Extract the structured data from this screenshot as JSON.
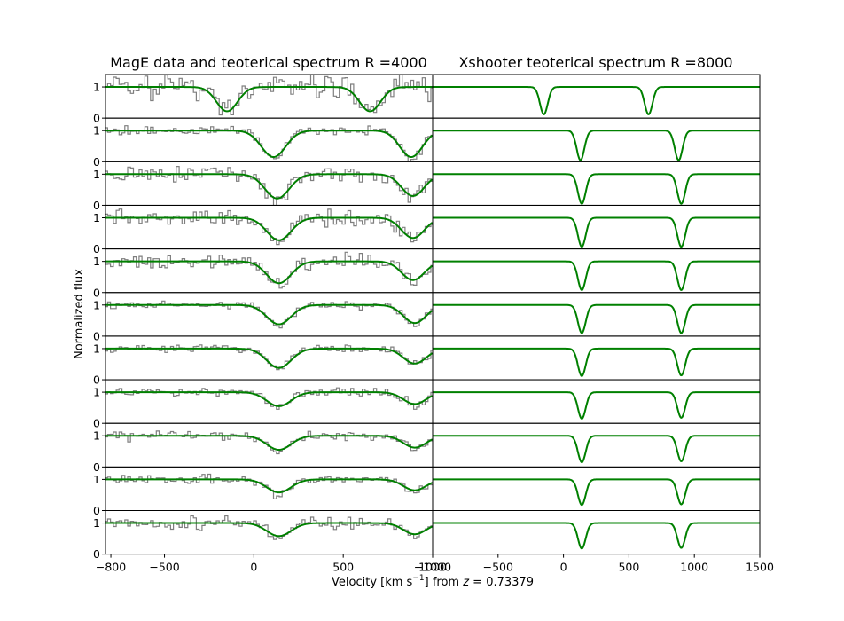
{
  "figure": {
    "ylabel": "Normalized flux",
    "xlabel_prefix": "Velocity [km s",
    "xlabel_sup": "−1",
    "xlabel_suffix": "] from ",
    "xlabel_z": "z",
    "xlabel_zval": " = 0.73379"
  },
  "chart_data": [
    {
      "type": "line",
      "title": "MagE data and teoterical spectrum R =4000",
      "xlim": [
        -830,
        1000
      ],
      "ylim": [
        0,
        1.4
      ],
      "xticks": [
        -800,
        -500,
        0,
        500,
        1000
      ],
      "xticklabels": [
        "−800",
        "−500",
        "0",
        "500",
        "1000"
      ],
      "yticks": [
        0,
        1
      ],
      "grid": false,
      "panels": [
        {
          "panel": 1,
          "components": [
            {
              "center": -150,
              "depth": 0.78,
              "fwhm": 140
            },
            {
              "center": 650,
              "depth": 0.78,
              "fwhm": 140
            }
          ],
          "data_noise": 0.22
        },
        {
          "panel": 2,
          "components": [
            {
              "center": 110,
              "depth": 0.85,
              "fwhm": 160
            },
            {
              "center": 880,
              "depth": 0.85,
              "fwhm": 150
            }
          ],
          "data_noise": 0.07
        },
        {
          "panel": 3,
          "components": [
            {
              "center": 130,
              "depth": 0.78,
              "fwhm": 160
            },
            {
              "center": 890,
              "depth": 0.7,
              "fwhm": 150
            }
          ],
          "data_noise": 0.12
        },
        {
          "panel": 4,
          "components": [
            {
              "center": 140,
              "depth": 0.72,
              "fwhm": 160
            },
            {
              "center": 890,
              "depth": 0.65,
              "fwhm": 150
            }
          ],
          "data_noise": 0.13
        },
        {
          "panel": 5,
          "components": [
            {
              "center": 140,
              "depth": 0.7,
              "fwhm": 160
            },
            {
              "center": 890,
              "depth": 0.6,
              "fwhm": 150
            }
          ],
          "data_noise": 0.12
        },
        {
          "panel": 6,
          "components": [
            {
              "center": 140,
              "depth": 0.62,
              "fwhm": 160
            },
            {
              "center": 900,
              "depth": 0.58,
              "fwhm": 150
            }
          ],
          "data_noise": 0.06
        },
        {
          "panel": 7,
          "components": [
            {
              "center": 140,
              "depth": 0.62,
              "fwhm": 160
            },
            {
              "center": 900,
              "depth": 0.48,
              "fwhm": 150
            }
          ],
          "data_noise": 0.06
        },
        {
          "panel": 8,
          "components": [
            {
              "center": 140,
              "depth": 0.45,
              "fwhm": 160
            },
            {
              "center": 900,
              "depth": 0.38,
              "fwhm": 150
            }
          ],
          "data_noise": 0.07
        },
        {
          "panel": 9,
          "components": [
            {
              "center": 140,
              "depth": 0.45,
              "fwhm": 160
            },
            {
              "center": 900,
              "depth": 0.38,
              "fwhm": 150
            }
          ],
          "data_noise": 0.07
        },
        {
          "panel": 10,
          "components": [
            {
              "center": 140,
              "depth": 0.42,
              "fwhm": 160
            },
            {
              "center": 900,
              "depth": 0.35,
              "fwhm": 150
            }
          ],
          "data_noise": 0.07
        },
        {
          "panel": 11,
          "components": [
            {
              "center": 140,
              "depth": 0.42,
              "fwhm": 160
            },
            {
              "center": 900,
              "depth": 0.36,
              "fwhm": 150
            }
          ],
          "data_noise": 0.09
        }
      ],
      "data_color": "#7f7f7f",
      "model_color": "#008000"
    },
    {
      "type": "line",
      "title": "Xshooter teoterical spectrum R =8000",
      "xlim": [
        -1000,
        1500
      ],
      "ylim": [
        0,
        1.4
      ],
      "xticks": [
        -1000,
        -500,
        0,
        500,
        1000,
        1500
      ],
      "xticklabels": [
        "−1000",
        "−500",
        "0",
        "500",
        "1000",
        "1500"
      ],
      "grid": false,
      "panels": [
        {
          "panel": 1,
          "components": [
            {
              "center": -150,
              "depth": 0.88,
              "fwhm": 70
            },
            {
              "center": 650,
              "depth": 0.88,
              "fwhm": 70
            }
          ]
        },
        {
          "panel": 2,
          "components": [
            {
              "center": 130,
              "depth": 0.95,
              "fwhm": 70
            },
            {
              "center": 880,
              "depth": 0.95,
              "fwhm": 70
            }
          ]
        },
        {
          "panel": 3,
          "components": [
            {
              "center": 140,
              "depth": 0.95,
              "fwhm": 70
            },
            {
              "center": 900,
              "depth": 0.95,
              "fwhm": 70
            }
          ]
        },
        {
          "panel": 4,
          "components": [
            {
              "center": 140,
              "depth": 0.93,
              "fwhm": 70
            },
            {
              "center": 900,
              "depth": 0.93,
              "fwhm": 70
            }
          ]
        },
        {
          "panel": 5,
          "components": [
            {
              "center": 140,
              "depth": 0.92,
              "fwhm": 70
            },
            {
              "center": 900,
              "depth": 0.92,
              "fwhm": 70
            }
          ]
        },
        {
          "panel": 6,
          "components": [
            {
              "center": 140,
              "depth": 0.9,
              "fwhm": 70
            },
            {
              "center": 900,
              "depth": 0.9,
              "fwhm": 70
            }
          ]
        },
        {
          "panel": 7,
          "components": [
            {
              "center": 140,
              "depth": 0.88,
              "fwhm": 70
            },
            {
              "center": 900,
              "depth": 0.86,
              "fwhm": 70
            }
          ]
        },
        {
          "panel": 8,
          "components": [
            {
              "center": 140,
              "depth": 0.85,
              "fwhm": 70
            },
            {
              "center": 900,
              "depth": 0.82,
              "fwhm": 70
            }
          ]
        },
        {
          "panel": 9,
          "components": [
            {
              "center": 140,
              "depth": 0.85,
              "fwhm": 70
            },
            {
              "center": 900,
              "depth": 0.82,
              "fwhm": 70
            }
          ]
        },
        {
          "panel": 10,
          "components": [
            {
              "center": 140,
              "depth": 0.82,
              "fwhm": 70
            },
            {
              "center": 900,
              "depth": 0.8,
              "fwhm": 70
            }
          ]
        },
        {
          "panel": 11,
          "components": [
            {
              "center": 140,
              "depth": 0.82,
              "fwhm": 70
            },
            {
              "center": 900,
              "depth": 0.8,
              "fwhm": 70
            }
          ]
        }
      ],
      "model_color": "#008000"
    }
  ]
}
